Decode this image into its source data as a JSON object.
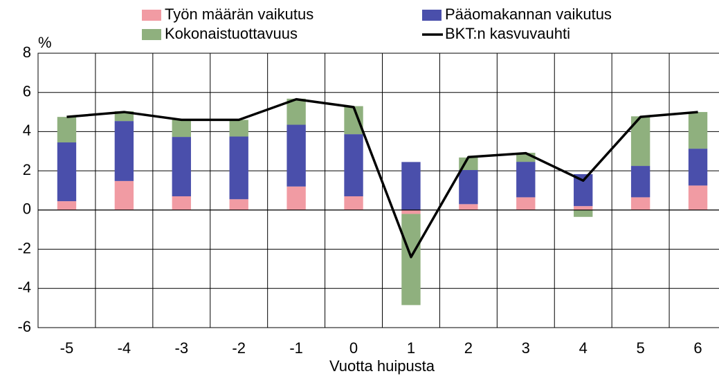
{
  "chart_data": {
    "type": "bar",
    "stacked": true,
    "x_label": "Vuotta huipusta",
    "y_unit": "%",
    "categories": [
      "-5",
      "-4",
      "-3",
      "-2",
      "-1",
      "0",
      "1",
      "2",
      "3",
      "4",
      "5",
      "6"
    ],
    "series": [
      {
        "name": "Työn määrän vaikutus",
        "color": "#f19ba3",
        "type": "bar",
        "values": [
          0.45,
          1.48,
          0.7,
          0.55,
          1.2,
          0.7,
          -0.2,
          0.3,
          0.65,
          0.2,
          0.65,
          1.25
        ]
      },
      {
        "name": "Pääomakannan vaikutus",
        "color": "#4a4fab",
        "type": "bar",
        "values": [
          3.0,
          3.06,
          3.03,
          3.2,
          3.15,
          3.17,
          2.45,
          1.74,
          1.81,
          1.63,
          1.6,
          1.88
        ]
      },
      {
        "name": "Kokonaistuottavuus",
        "color": "#8fb07e",
        "type": "bar",
        "values": [
          1.3,
          0.5,
          0.92,
          0.85,
          1.33,
          1.43,
          -4.65,
          0.64,
          0.46,
          -0.35,
          2.53,
          1.87
        ]
      },
      {
        "name": "BKT:n kasvuvauhti",
        "color": "#000000",
        "type": "line",
        "values": [
          4.75,
          5.0,
          4.6,
          4.6,
          5.65,
          5.25,
          -2.4,
          2.7,
          2.9,
          1.5,
          4.75,
          5.0
        ]
      }
    ],
    "ylim": [
      -6,
      8
    ],
    "yticks": [
      -6,
      -4,
      -2,
      0,
      2,
      4,
      6,
      8
    ],
    "grid": true
  }
}
